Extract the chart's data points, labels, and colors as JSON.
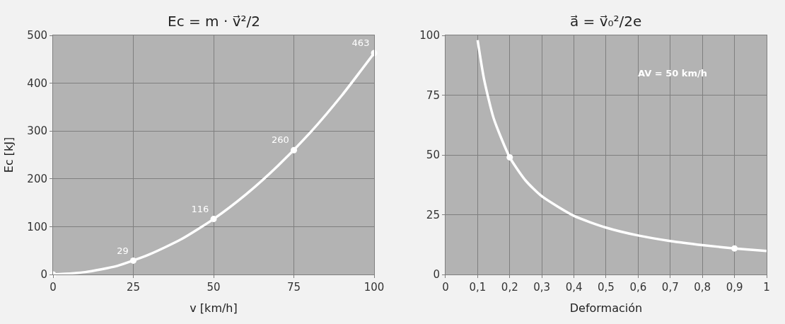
{
  "chart_data": [
    {
      "type": "line",
      "title": "Ec = m · v⃗²/2",
      "xlabel": "v [km/h]",
      "ylabel": "Ec [kJ]",
      "xlim": [
        0,
        100
      ],
      "ylim": [
        0,
        500
      ],
      "xticks": [
        0,
        25,
        50,
        75,
        100
      ],
      "yticks": [
        0,
        100,
        200,
        300,
        400,
        500
      ],
      "grid": true,
      "series": [
        {
          "color": "#ffffff",
          "marker": "none",
          "x": [
            0,
            10,
            20,
            30,
            40,
            50,
            60,
            70,
            80,
            90,
            100
          ],
          "values": [
            0,
            5,
            18,
            42,
            74,
            116,
            167,
            227,
            296,
            375,
            463
          ]
        },
        {
          "type": "scatter",
          "color": "#ffffff",
          "marker": "circle",
          "x": [
            0,
            25,
            50,
            75,
            100
          ],
          "values": [
            0,
            29,
            116,
            260,
            463
          ],
          "value_labels": [
            null,
            "29",
            "116",
            "260",
            "463"
          ]
        }
      ]
    },
    {
      "type": "line",
      "title": "a⃗ = v⃗₀²/2e",
      "xlabel": "Deformación",
      "xlim": [
        0,
        1
      ],
      "ylim": [
        0,
        100
      ],
      "xticks": [
        {
          "value": 0,
          "label": "0"
        },
        {
          "value": 0.1,
          "label": "0,1"
        },
        {
          "value": 0.2,
          "label": "0,2"
        },
        {
          "value": 0.3,
          "label": "0,3"
        },
        {
          "value": 0.4,
          "label": "0,4"
        },
        {
          "value": 0.5,
          "label": "0,5"
        },
        {
          "value": 0.6,
          "label": "0,6"
        },
        {
          "value": 0.7,
          "label": "0,7"
        },
        {
          "value": 0.8,
          "label": "0,8"
        },
        {
          "value": 0.9,
          "label": "0,9"
        },
        {
          "value": 1,
          "label": "1"
        }
      ],
      "yticks": [
        0,
        25,
        50,
        75,
        100
      ],
      "grid": true,
      "annotations": [
        "AV = 50 km/h"
      ],
      "series": [
        {
          "color": "#ffffff",
          "marker": "none",
          "x": [
            0.1,
            0.12,
            0.15,
            0.2,
            0.25,
            0.3,
            0.4,
            0.5,
            0.6,
            0.7,
            0.8,
            0.9,
            1.0
          ],
          "values": [
            98,
            81.7,
            65.3,
            49,
            39.2,
            32.7,
            24.5,
            19.6,
            16.3,
            14,
            12.3,
            10.9,
            9.8
          ]
        },
        {
          "type": "scatter",
          "color": "#ffffff",
          "marker": "circle",
          "x": [
            0.2,
            0.9
          ],
          "values": [
            49,
            10.9
          ]
        }
      ]
    }
  ]
}
